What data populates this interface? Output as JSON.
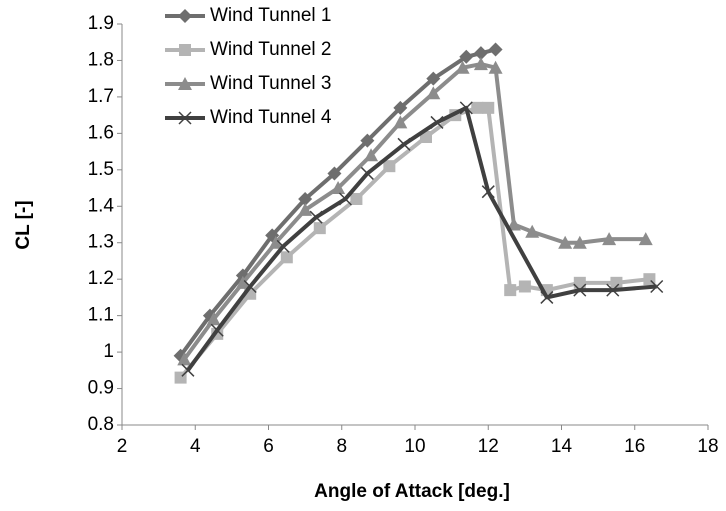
{
  "chart_data": {
    "type": "line",
    "xlabel": "Angle of Attack [deg.]",
    "ylabel": "CL [-]",
    "xlim": [
      2,
      18
    ],
    "xticks": [
      2,
      4,
      6,
      8,
      10,
      12,
      14,
      16,
      18
    ],
    "ylim": [
      0.8,
      1.9
    ],
    "yticks": [
      0.8,
      0.9,
      1,
      1.1,
      1.2,
      1.3,
      1.4,
      1.5,
      1.6,
      1.7,
      1.8,
      1.9
    ],
    "legend": "top-left",
    "series": [
      {
        "name": "Wind Tunnel 1",
        "color": "#6e6e6e",
        "marker": "diamond",
        "x": [
          3.6,
          4.4,
          5.3,
          6.1,
          7.0,
          7.8,
          8.7,
          9.6,
          10.5,
          11.4,
          11.8,
          12.2
        ],
        "values": [
          0.99,
          1.1,
          1.21,
          1.32,
          1.42,
          1.49,
          1.58,
          1.67,
          1.75,
          1.81,
          1.82,
          1.83
        ]
      },
      {
        "name": "Wind Tunnel 2",
        "color": "#b4b4b4",
        "marker": "square",
        "x": [
          3.6,
          4.6,
          5.5,
          6.5,
          7.4,
          8.4,
          9.3,
          10.3,
          11.1,
          11.7,
          12.0,
          12.6,
          13.0,
          13.6,
          14.5,
          15.5,
          16.4
        ],
        "values": [
          0.93,
          1.05,
          1.16,
          1.26,
          1.34,
          1.42,
          1.51,
          1.59,
          1.65,
          1.67,
          1.67,
          1.17,
          1.18,
          1.17,
          1.19,
          1.19,
          1.2
        ]
      },
      {
        "name": "Wind Tunnel 3",
        "color": "#8c8c8c",
        "marker": "triangle",
        "x": [
          3.7,
          4.5,
          5.3,
          6.2,
          7.0,
          7.9,
          8.8,
          9.6,
          10.5,
          11.3,
          11.8,
          12.2,
          12.7,
          13.2,
          14.1,
          14.5,
          15.3,
          16.3
        ],
        "values": [
          0.98,
          1.09,
          1.19,
          1.3,
          1.39,
          1.45,
          1.54,
          1.63,
          1.71,
          1.78,
          1.79,
          1.78,
          1.35,
          1.33,
          1.3,
          1.3,
          1.31,
          1.31
        ]
      },
      {
        "name": "Wind Tunnel 4",
        "color": "#404040",
        "marker": "x",
        "x": [
          3.8,
          4.6,
          5.5,
          6.4,
          7.3,
          8.1,
          8.7,
          9.7,
          10.6,
          11.4,
          12.0,
          13.6,
          14.5,
          15.4,
          16.6
        ],
        "values": [
          0.95,
          1.06,
          1.18,
          1.29,
          1.37,
          1.42,
          1.49,
          1.57,
          1.63,
          1.67,
          1.44,
          1.15,
          1.17,
          1.17,
          1.18
        ]
      }
    ]
  }
}
